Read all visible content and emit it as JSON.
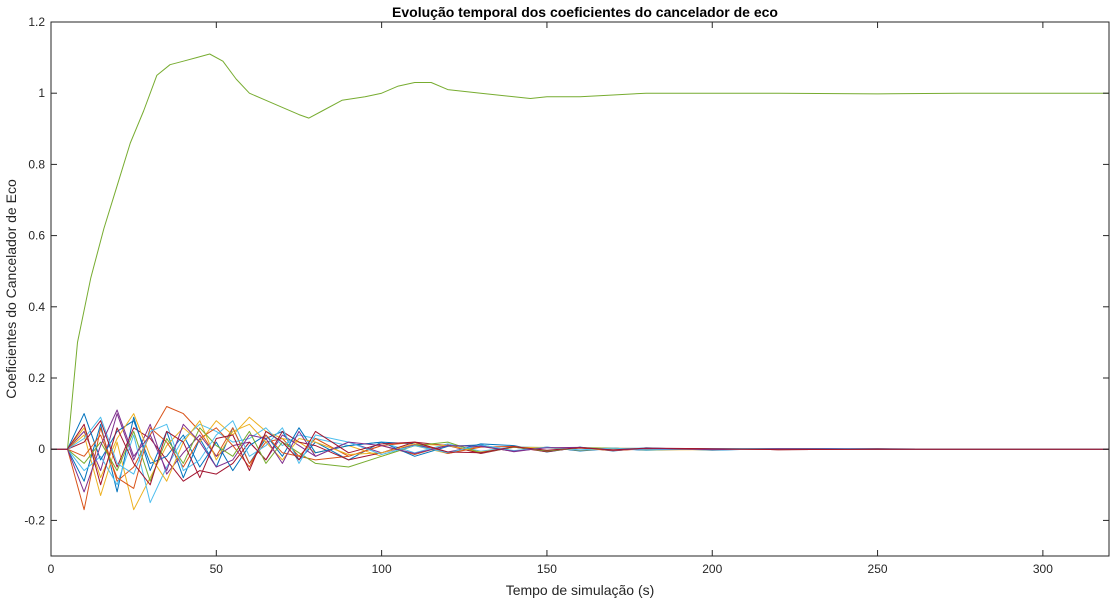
{
  "chart_data": {
    "type": "line",
    "title": "Evolução temporal dos coeficientes do cancelador de eco",
    "xlabel": "Tempo de simulação (s)",
    "ylabel": "Coeficientes do Cancelador de Eco",
    "xlim": [
      0,
      320
    ],
    "ylim": [
      -0.3,
      1.2
    ],
    "xticks": [
      0,
      50,
      100,
      150,
      200,
      250,
      300
    ],
    "yticks": [
      -0.2,
      0,
      0.2,
      0.4,
      0.6,
      0.8,
      1,
      1.2
    ],
    "xtick_labels": [
      "0",
      "50",
      "100",
      "150",
      "200",
      "250",
      "300"
    ],
    "ytick_labels": [
      "-0.2",
      "0",
      "0.2",
      "0.4",
      "0.6",
      "0.8",
      "1",
      "1.2"
    ],
    "grid": false,
    "series": [
      {
        "color": "#77AC30",
        "x": [
          0,
          5,
          8,
          12,
          16,
          20,
          24,
          28,
          32,
          36,
          40,
          44,
          48,
          52,
          56,
          60,
          65,
          70,
          75,
          78,
          82,
          88,
          95,
          100,
          105,
          110,
          115,
          120,
          130,
          140,
          145,
          150,
          160,
          170,
          180,
          200,
          220,
          250,
          275,
          300,
          320
        ],
        "y": [
          0,
          0,
          0.3,
          0.48,
          0.62,
          0.74,
          0.86,
          0.95,
          1.05,
          1.08,
          1.09,
          1.1,
          1.11,
          1.09,
          1.04,
          1.0,
          0.98,
          0.96,
          0.94,
          0.93,
          0.95,
          0.98,
          0.99,
          1.0,
          1.02,
          1.03,
          1.03,
          1.01,
          1.0,
          0.99,
          0.985,
          0.99,
          0.99,
          0.995,
          1.0,
          1.0,
          1.0,
          0.998,
          1.0,
          1.0,
          1.0
        ]
      },
      {
        "color": "#0072BD",
        "x": [
          0,
          5,
          10,
          15,
          20,
          25,
          30,
          35,
          40,
          45,
          50,
          55,
          60,
          65,
          70,
          75,
          80,
          90,
          100,
          110,
          120,
          130,
          140,
          150,
          160,
          170,
          180,
          200,
          220,
          250,
          280,
          320
        ],
        "y": [
          0,
          0,
          -0.09,
          0.07,
          -0.12,
          0.09,
          -0.06,
          0.05,
          -0.08,
          0.03,
          -0.05,
          0.06,
          -0.04,
          0.03,
          0.05,
          -0.03,
          0.02,
          -0.03,
          0.02,
          0.015,
          -0.01,
          0.015,
          0.01,
          -0.008,
          0.006,
          -0.005,
          0.004,
          -0.003,
          0.002,
          0.001,
          0,
          0
        ]
      },
      {
        "color": "#D95319",
        "x": [
          0,
          5,
          10,
          15,
          20,
          25,
          30,
          35,
          40,
          45,
          50,
          55,
          60,
          65,
          70,
          75,
          80,
          90,
          100,
          110,
          120,
          130,
          140,
          150,
          160,
          170,
          180,
          200,
          220,
          250,
          280,
          320
        ],
        "y": [
          0,
          0,
          -0.17,
          0.06,
          -0.09,
          -0.05,
          0.04,
          0.12,
          0.1,
          0.05,
          -0.02,
          0.06,
          -0.04,
          0.02,
          0.03,
          -0.02,
          -0.03,
          -0.02,
          0.01,
          -0.015,
          0.012,
          -0.01,
          0.008,
          -0.006,
          0.004,
          0.003,
          -0.002,
          0.002,
          -0.001,
          0,
          0,
          0
        ]
      },
      {
        "color": "#EDB120",
        "x": [
          0,
          5,
          10,
          15,
          20,
          25,
          30,
          35,
          40,
          45,
          50,
          55,
          60,
          65,
          70,
          75,
          80,
          90,
          100,
          110,
          120,
          130,
          140,
          150,
          160,
          170,
          180,
          200,
          220,
          250,
          280,
          320
        ],
        "y": [
          0,
          0,
          0.04,
          -0.13,
          0.02,
          -0.17,
          -0.08,
          0.01,
          0.06,
          0.02,
          0.08,
          0.04,
          0.09,
          0.05,
          0.03,
          0.02,
          -0.01,
          0.01,
          -0.02,
          0.01,
          -0.012,
          0.008,
          -0.006,
          0.005,
          -0.004,
          0.003,
          0.002,
          -0.001,
          0.001,
          0,
          0,
          0
        ]
      },
      {
        "color": "#7E2F8E",
        "x": [
          0,
          5,
          10,
          15,
          20,
          25,
          30,
          35,
          40,
          45,
          50,
          55,
          60,
          65,
          70,
          75,
          80,
          90,
          100,
          110,
          120,
          130,
          140,
          150,
          160,
          170,
          180,
          200,
          220,
          250,
          280,
          320
        ],
        "y": [
          0,
          0,
          0.05,
          -0.06,
          0.1,
          -0.03,
          0.07,
          -0.07,
          -0.01,
          0.04,
          -0.02,
          0.01,
          0.02,
          -0.03,
          0.04,
          0.01,
          -0.02,
          0.02,
          -0.01,
          0.012,
          -0.008,
          0.01,
          -0.007,
          0.005,
          -0.004,
          0.003,
          -0.002,
          0.002,
          -0.001,
          0,
          0,
          0
        ]
      },
      {
        "color": "#4DBEEE",
        "x": [
          0,
          5,
          10,
          15,
          20,
          25,
          30,
          35,
          40,
          45,
          50,
          55,
          60,
          65,
          70,
          75,
          80,
          90,
          100,
          110,
          120,
          130,
          140,
          150,
          160,
          170,
          180,
          200,
          220,
          250,
          280,
          320
        ],
        "y": [
          0,
          0,
          -0.06,
          -0.02,
          -0.1,
          0.04,
          -0.15,
          -0.05,
          0.03,
          0.07,
          0.05,
          0.02,
          0.03,
          0.06,
          0.01,
          0.04,
          0.03,
          0.01,
          0.02,
          -0.01,
          0.015,
          -0.006,
          0.007,
          0.004,
          -0.003,
          0.002,
          0.003,
          -0.002,
          0.001,
          0.001,
          0,
          0
        ]
      },
      {
        "color": "#A2142F",
        "x": [
          0,
          5,
          10,
          15,
          20,
          25,
          30,
          35,
          40,
          45,
          50,
          55,
          60,
          65,
          70,
          75,
          80,
          90,
          100,
          110,
          120,
          130,
          140,
          150,
          160,
          170,
          180,
          200,
          220,
          250,
          280,
          320
        ],
        "y": [
          0,
          0,
          0.02,
          0.08,
          -0.05,
          0.06,
          0.03,
          -0.03,
          -0.09,
          -0.06,
          -0.07,
          -0.04,
          0.02,
          -0.03,
          0.05,
          0.02,
          0.01,
          -0.03,
          -0.01,
          0.02,
          0.01,
          -0.012,
          0.006,
          -0.007,
          0.005,
          -0.004,
          0.002,
          0.002,
          -0.001,
          0.001,
          0,
          0
        ]
      },
      {
        "color": "#0072BD",
        "x": [
          0,
          5,
          10,
          15,
          20,
          25,
          30,
          35,
          40,
          45,
          50,
          55,
          60,
          65,
          70,
          75,
          80,
          90,
          100,
          110,
          120,
          130,
          140,
          150,
          160,
          170,
          180,
          200,
          220,
          250,
          280,
          320
        ],
        "y": [
          0,
          0,
          0.1,
          -0.03,
          0.05,
          0.08,
          -0.04,
          -0.02,
          0.04,
          -0.05,
          0.02,
          -0.06,
          0.01,
          0.04,
          -0.02,
          0.06,
          -0.01,
          0.01,
          0.02,
          -0.02,
          0.008,
          0.012,
          -0.005,
          0.006,
          -0.005,
          0.002,
          -0.003,
          0.001,
          0.002,
          0,
          0,
          0
        ]
      },
      {
        "color": "#D95319",
        "x": [
          0,
          5,
          10,
          15,
          20,
          25,
          30,
          35,
          40,
          45,
          50,
          55,
          60,
          65,
          70,
          75,
          80,
          90,
          100,
          110,
          120,
          130,
          140,
          150,
          160,
          170,
          180,
          200,
          220,
          250,
          280,
          320
        ],
        "y": [
          0,
          0,
          -0.02,
          0.04,
          -0.08,
          -0.11,
          0.06,
          0.02,
          -0.05,
          0.03,
          0.06,
          0.01,
          -0.05,
          0.04,
          -0.01,
          -0.02,
          0.03,
          -0.02,
          0.01,
          0.02,
          -0.012,
          0.006,
          0.008,
          -0.004,
          0.003,
          -0.004,
          0.001,
          0.002,
          -0.001,
          0,
          0,
          0
        ]
      },
      {
        "color": "#EDB120",
        "x": [
          0,
          5,
          10,
          15,
          20,
          25,
          30,
          35,
          40,
          45,
          50,
          55,
          60,
          65,
          70,
          75,
          80,
          90,
          100,
          110,
          120,
          130,
          140,
          150,
          160,
          170,
          180,
          200,
          220,
          250,
          280,
          320
        ],
        "y": [
          0,
          0,
          0.06,
          -0.08,
          0.03,
          0.1,
          -0.02,
          -0.09,
          0.02,
          0.08,
          -0.03,
          0.05,
          0.07,
          0.02,
          -0.03,
          0.03,
          0.02,
          -0.015,
          -0.01,
          0.015,
          0.01,
          -0.008,
          0.005,
          0.005,
          -0.003,
          0.002,
          -0.002,
          -0.001,
          0.001,
          0,
          0,
          0
        ]
      },
      {
        "color": "#77AC30",
        "x": [
          0,
          5,
          10,
          15,
          20,
          25,
          30,
          35,
          40,
          45,
          50,
          55,
          60,
          65,
          70,
          75,
          80,
          90,
          100,
          110,
          120,
          130,
          140,
          150,
          160,
          170,
          180,
          200,
          220,
          250,
          280,
          320
        ],
        "y": [
          0,
          0,
          -0.04,
          0.02,
          -0.06,
          0.05,
          -0.09,
          0.03,
          -0.04,
          0.06,
          0.01,
          -0.02,
          0.05,
          -0.04,
          0.02,
          -0.01,
          -0.04,
          -0.05,
          -0.02,
          0.01,
          0.02,
          -0.01,
          0.006,
          -0.005,
          0.004,
          0.003,
          -0.002,
          0.001,
          0.001,
          0,
          0,
          0
        ]
      },
      {
        "color": "#4DBEEE",
        "x": [
          0,
          5,
          10,
          15,
          20,
          25,
          30,
          35,
          40,
          45,
          50,
          55,
          60,
          65,
          70,
          75,
          80,
          90,
          100,
          110,
          120,
          130,
          140,
          150,
          160,
          170,
          180,
          200,
          220,
          250,
          280,
          320
        ],
        "y": [
          0,
          0,
          0.03,
          0.09,
          -0.04,
          -0.07,
          0.05,
          0.07,
          -0.06,
          -0.03,
          0.04,
          0.08,
          -0.02,
          0.01,
          0.06,
          -0.04,
          0.04,
          0.02,
          -0.015,
          0.01,
          -0.01,
          0.012,
          -0.004,
          0.006,
          -0.002,
          0.003,
          -0.002,
          0.002,
          0.001,
          0,
          0,
          0
        ]
      },
      {
        "color": "#7E2F8E",
        "x": [
          0,
          5,
          10,
          15,
          20,
          25,
          30,
          35,
          40,
          45,
          50,
          55,
          60,
          65,
          70,
          75,
          80,
          90,
          100,
          110,
          120,
          130,
          140,
          150,
          160,
          170,
          180,
          200,
          220,
          250,
          280,
          320
        ],
        "y": [
          0,
          0,
          -0.12,
          0.01,
          0.11,
          -0.02,
          0.04,
          -0.06,
          0.07,
          0.02,
          -0.05,
          -0.03,
          0.04,
          0.03,
          -0.04,
          0.05,
          -0.02,
          0.02,
          0.01,
          -0.012,
          0.01,
          0.008,
          -0.006,
          0.004,
          0.005,
          -0.003,
          0.002,
          -0.001,
          0.001,
          0,
          0,
          0
        ]
      },
      {
        "color": "#A2142F",
        "x": [
          0,
          5,
          10,
          15,
          20,
          25,
          30,
          35,
          40,
          45,
          50,
          55,
          60,
          65,
          70,
          75,
          80,
          90,
          100,
          110,
          120,
          130,
          140,
          150,
          160,
          170,
          180,
          200,
          220,
          250,
          280,
          320
        ],
        "y": [
          0,
          0,
          0.07,
          -0.1,
          0.06,
          -0.04,
          -0.1,
          0.05,
          0.02,
          -0.08,
          0.03,
          0.04,
          -0.06,
          0.05,
          0.02,
          -0.03,
          0.05,
          -0.01,
          0.015,
          0.02,
          -0.008,
          -0.01,
          0.007,
          -0.003,
          0.004,
          -0.002,
          0.003,
          0.001,
          -0.001,
          0,
          0,
          0
        ]
      }
    ]
  }
}
